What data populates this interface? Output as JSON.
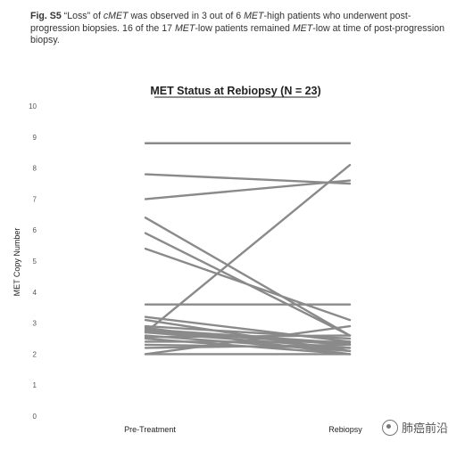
{
  "caption": {
    "label": "Fig. S5",
    "parts": [
      {
        "text": " “Loss” of ",
        "italic": false
      },
      {
        "text": "cMET",
        "italic": true
      },
      {
        "text": " was observed in 3 out of 6 ",
        "italic": false
      },
      {
        "text": "MET",
        "italic": true
      },
      {
        "text": "-high patients who underwent post-progression biopsies. 16 of the 17 ",
        "italic": false
      },
      {
        "text": "MET",
        "italic": true
      },
      {
        "text": "-low patients remained ",
        "italic": false
      },
      {
        "text": "MET",
        "italic": true
      },
      {
        "text": "-low at time of post-progression biopsy.",
        "italic": false
      }
    ]
  },
  "watermark": {
    "text": "肺癌前沿",
    "icon": "wechat-logo-icon"
  },
  "chart_data": {
    "type": "line",
    "title": "MET Status at Rebiopsy (N = 23)",
    "ylabel": "MET Copy Number",
    "categories": [
      "Pre-Treatment",
      "Rebiopsy"
    ],
    "ylim": [
      0,
      10
    ],
    "yticks": [
      "0",
      "1",
      "2",
      "3",
      "4",
      "5",
      "6",
      "7",
      "8",
      "9",
      "10"
    ],
    "grid": false,
    "line_color": "#8a8a8a",
    "series": [
      {
        "values": [
          8.8,
          8.8
        ]
      },
      {
        "values": [
          7.8,
          7.5
        ]
      },
      {
        "values": [
          7.0,
          7.6
        ]
      },
      {
        "values": [
          6.4,
          2.6
        ]
      },
      {
        "values": [
          5.9,
          2.6
        ]
      },
      {
        "values": [
          5.4,
          3.1
        ]
      },
      {
        "values": [
          3.6,
          3.6
        ]
      },
      {
        "values": [
          3.2,
          2.4
        ]
      },
      {
        "values": [
          3.1,
          2.1
        ]
      },
      {
        "values": [
          2.9,
          2.5
        ]
      },
      {
        "values": [
          2.85,
          2.0
        ]
      },
      {
        "values": [
          2.8,
          2.35
        ]
      },
      {
        "values": [
          2.75,
          2.3
        ]
      },
      {
        "values": [
          2.7,
          2.2
        ]
      },
      {
        "values": [
          2.7,
          8.1
        ]
      },
      {
        "values": [
          2.6,
          2.1
        ]
      },
      {
        "values": [
          2.55,
          2.6
        ]
      },
      {
        "values": [
          2.5,
          2.0
        ]
      },
      {
        "values": [
          2.4,
          2.4
        ]
      },
      {
        "values": [
          2.3,
          2.2
        ]
      },
      {
        "values": [
          2.2,
          2.3
        ]
      },
      {
        "values": [
          2.0,
          2.0
        ]
      },
      {
        "values": [
          2.0,
          2.9
        ]
      }
    ]
  }
}
